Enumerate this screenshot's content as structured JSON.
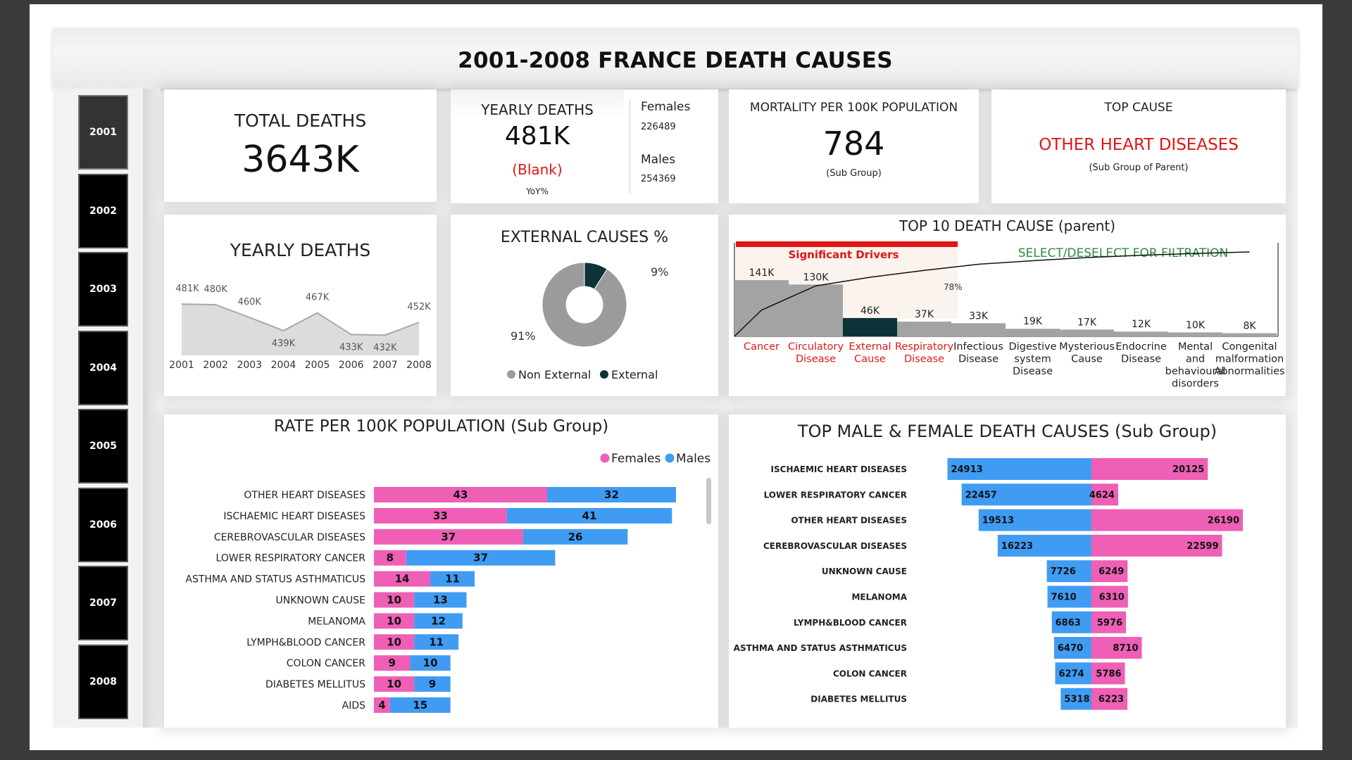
{
  "header": {
    "title": "2001-2008 FRANCE DEATH CAUSES"
  },
  "years": [
    "2001",
    "2002",
    "2003",
    "2004",
    "2005",
    "2006",
    "2007",
    "2008"
  ],
  "selected_year": "2001",
  "kpi": {
    "total_deaths_label": "TOTAL DEATHS",
    "total_deaths_value": "3643K",
    "yearly_deaths_label": "YEARLY DEATHS",
    "yearly_deaths_value": "481K",
    "yoy_blank": "(Blank)",
    "yoy_label": "YoY%",
    "females_label": "Females",
    "females_value": "226489",
    "males_label": "Males",
    "males_value": "254369",
    "mortality_label": "MORTALITY PER 100K POPULATION",
    "mortality_value": "784",
    "mortality_sub": "(Sub Group)",
    "top_cause_label": "TOP CAUSE",
    "top_cause_value": "OTHER HEART DISEASES",
    "top_cause_sub": "(Sub Group of Parent)"
  },
  "colors": {
    "female": "#ee5fb5",
    "male": "#3f9cf2",
    "red": "#e01515",
    "green": "#2f8a3a",
    "dark": "#0d3238",
    "grey": "#9b9b9b"
  },
  "chart_data": [
    {
      "type": "area",
      "title": "YEARLY DEATHS",
      "x": [
        "2001",
        "2002",
        "2003",
        "2004",
        "2005",
        "2006",
        "2007",
        "2008"
      ],
      "values": [
        481,
        480,
        460,
        439,
        467,
        433,
        432,
        452
      ],
      "data_labels": [
        "481K",
        "480K",
        "460K",
        "439K",
        "467K",
        "433K",
        "432K",
        "452K"
      ],
      "ylim": [
        400,
        500
      ]
    },
    {
      "type": "pie",
      "title": "EXTERNAL CAUSES %",
      "slices": [
        {
          "name": "Non External",
          "value": 91,
          "label": "91%"
        },
        {
          "name": "External",
          "value": 9,
          "label": "9%"
        }
      ],
      "legend": "bottom"
    },
    {
      "type": "bar",
      "title": "TOP 10 DEATH CAUSE (parent)",
      "annotation_left": "Significant Drivers",
      "annotation_right": "SELECT/DESELECT FOR FILTRATION",
      "cumulative_label": "78%",
      "categories": [
        "Cancer",
        "Circulatory Disease",
        "External Cause",
        "Respiratory Disease",
        "Infectious Disease",
        "Digestive system Disease",
        "Mysterious Cause",
        "Endocrine Disease",
        "Mental and behavioural disorders",
        "Congenital malformation Abnormalities"
      ],
      "category_lines": [
        [
          "Cancer"
        ],
        [
          "Circulatory",
          "Disease"
        ],
        [
          "External",
          "Cause"
        ],
        [
          "Respiratory",
          "Disease"
        ],
        [
          "Infectious",
          "Disease"
        ],
        [
          "Digestive",
          "system",
          "Disease"
        ],
        [
          "Mysterious",
          "Cause"
        ],
        [
          "Endocrine",
          "Disease"
        ],
        [
          "Mental",
          "and",
          "behavioural",
          "disorders"
        ],
        [
          "Congenital",
          "malformation",
          "Abnormalities"
        ]
      ],
      "values": [
        141,
        130,
        46,
        37,
        33,
        19,
        17,
        12,
        10,
        8
      ],
      "value_labels": [
        "141K",
        "130K",
        "46K",
        "37K",
        "33K",
        "19K",
        "17K",
        "12K",
        "10K",
        "8K"
      ],
      "significant": [
        true,
        true,
        true,
        true,
        false,
        false,
        false,
        false,
        false,
        false
      ]
    },
    {
      "type": "bar",
      "title": "RATE PER 100K POPULATION (Sub Group)",
      "legend": [
        "Females",
        "Males"
      ],
      "categories": [
        "OTHER HEART DISEASES",
        "ISCHAEMIC HEART DISEASES",
        "CEREBROVASCULAR DISEASES",
        "LOWER RESPIRATORY CANCER",
        "ASTHMA AND STATUS ASTHMATICUS",
        "UNKNOWN CAUSE",
        "MELANOMA",
        "LYMPH&BLOOD CANCER",
        "COLON CANCER",
        "DIABETES MELLITUS",
        "AIDS"
      ],
      "series": [
        {
          "name": "Females",
          "values": [
            43,
            33,
            37,
            8,
            14,
            10,
            10,
            10,
            9,
            10,
            4
          ]
        },
        {
          "name": "Males",
          "values": [
            32,
            41,
            26,
            37,
            11,
            13,
            12,
            11,
            10,
            9,
            15
          ]
        }
      ]
    },
    {
      "type": "bar",
      "title": "TOP MALE & FEMALE DEATH CAUSES (Sub Group)",
      "categories": [
        "ISCHAEMIC HEART DISEASES",
        "LOWER RESPIRATORY CANCER",
        "OTHER HEART DISEASES",
        "CEREBROVASCULAR DISEASES",
        "UNKNOWN CAUSE",
        "MELANOMA",
        "LYMPH&BLOOD CANCER",
        "ASTHMA AND STATUS ASTHMATICUS",
        "COLON CANCER",
        "DIABETES MELLITUS"
      ],
      "series": [
        {
          "name": "Males",
          "values": [
            24913,
            22457,
            19513,
            16223,
            7726,
            7610,
            6863,
            6470,
            6274,
            5318
          ]
        },
        {
          "name": "Females",
          "values": [
            20125,
            4624,
            26190,
            22599,
            6249,
            6310,
            5976,
            8710,
            5786,
            6223
          ]
        }
      ]
    }
  ]
}
